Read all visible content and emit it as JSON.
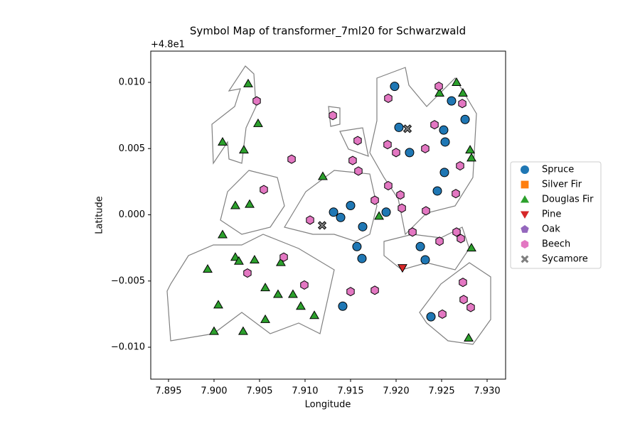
{
  "chart_data": {
    "type": "scatter",
    "title": "Symbol Map of transformer_7ml20 for Schwarzwald",
    "x_label": "Longitude",
    "y_label": "Latitude",
    "y_offset_label": "+4.8e1",
    "xlim": [
      7.89305,
      7.93203
    ],
    "ylim": [
      -0.01241,
      0.01236
    ],
    "xticks": [
      {
        "value": 7.895,
        "label": "7.895"
      },
      {
        "value": 7.9,
        "label": "7.900"
      },
      {
        "value": 7.905,
        "label": "7.905"
      },
      {
        "value": 7.91,
        "label": "7.910"
      },
      {
        "value": 7.915,
        "label": "7.915"
      },
      {
        "value": 7.92,
        "label": "7.920"
      },
      {
        "value": 7.925,
        "label": "7.925"
      },
      {
        "value": 7.93,
        "label": "7.930"
      }
    ],
    "yticks": [
      {
        "value": -0.01,
        "label": "−0.010"
      },
      {
        "value": -0.005,
        "label": "−0.005"
      },
      {
        "value": 0,
        "label": "0.000"
      },
      {
        "value": 0.005,
        "label": "0.005"
      },
      {
        "value": 0.01,
        "label": "0.010"
      }
    ],
    "legend": "right",
    "series": [
      {
        "name": "Spruce",
        "color": "#1f77b4",
        "marker": "circle",
        "x": [
          7.91984,
          7.92031,
          7.92148,
          7.92523,
          7.92609,
          7.92758,
          7.92539,
          7.92531,
          7.92453,
          7.915,
          7.91313,
          7.91391,
          7.91633,
          7.9157,
          7.91625,
          7.91891,
          7.92266,
          7.9232,
          7.92383,
          7.91414
        ],
        "y": [
          0.0097,
          0.0066,
          0.0047,
          0.0064,
          0.0086,
          0.0072,
          0.0055,
          0.0032,
          0.0018,
          0.0007,
          0.0002,
          -0.0002,
          -0.0009,
          -0.0024,
          -0.0033,
          0.0002,
          -0.0024,
          -0.0034,
          -0.0077,
          -0.0069
        ]
      },
      {
        "name": "Silver Fir",
        "color": "#ff7f0e",
        "marker": "square",
        "x": [],
        "y": []
      },
      {
        "name": "Douglas Fir",
        "color": "#2ca02c",
        "marker": "triangle-up",
        "x": [
          7.90375,
          7.90094,
          7.90328,
          7.90484,
          7.91195,
          7.90234,
          7.90391,
          7.90094,
          7.90234,
          7.90273,
          7.90445,
          7.90734,
          7.90563,
          7.90703,
          7.90867,
          7.90953,
          7.91102,
          7.90563,
          7.9032,
          7.9,
          7.90047,
          7.8993,
          7.91813,
          7.92477,
          7.92664,
          7.92734,
          7.92813,
          7.92828,
          7.92828,
          7.92797
        ],
        "y": [
          0.0099,
          0.0055,
          0.0049,
          0.0069,
          0.0029,
          0.0007,
          0.0008,
          -0.0015,
          -0.0032,
          -0.0035,
          -0.0034,
          -0.0036,
          -0.0055,
          -0.006,
          -0.006,
          -0.0069,
          -0.0076,
          -0.0079,
          -0.0088,
          -0.0088,
          -0.0068,
          -0.0041,
          -0.0001,
          0.0092,
          0.01,
          0.0092,
          0.0049,
          0.0043,
          -0.0025,
          -0.0093
        ]
      },
      {
        "name": "Pine",
        "color": "#d62728",
        "marker": "triangle-down",
        "x": [
          7.9207
        ],
        "y": [
          -0.004
        ]
      },
      {
        "name": "Oak",
        "color": "#9467bd",
        "marker": "pentagon",
        "x": [],
        "y": []
      },
      {
        "name": "Beech",
        "color": "#e377c2",
        "marker": "hexagon",
        "x": [
          7.90469,
          7.90852,
          7.90547,
          7.91305,
          7.91578,
          7.91523,
          7.91586,
          7.91914,
          7.91906,
          7.92,
          7.91914,
          7.92047,
          7.92063,
          7.91766,
          7.9232,
          7.92422,
          7.92469,
          7.92727,
          7.92703,
          7.92656,
          7.92328,
          7.9218,
          7.92477,
          7.92664,
          7.92711,
          7.92734,
          7.92742,
          7.9282,
          7.92508,
          7.90766,
          7.90367,
          7.90992,
          7.91055,
          7.915,
          7.91766
        ],
        "y": [
          0.0086,
          0.0042,
          0.0019,
          0.0075,
          0.0056,
          0.0041,
          0.0033,
          0.0088,
          0.0053,
          0.0047,
          0.0022,
          0.0015,
          0.0005,
          0.0011,
          0.005,
          0.0068,
          0.0097,
          0.0084,
          0.0037,
          0.0016,
          0.0003,
          -0.0013,
          -0.002,
          -0.0013,
          -0.0018,
          -0.0051,
          -0.0064,
          -0.007,
          -0.0075,
          -0.0032,
          -0.0044,
          -0.0053,
          -0.0004,
          -0.0058,
          -0.0057
        ]
      },
      {
        "name": "Sycamore",
        "color": "#7f7f7f",
        "marker": "x",
        "x": [
          7.92125,
          7.91188
        ],
        "y": [
          0.0065,
          -0.0008
        ]
      }
    ]
  }
}
